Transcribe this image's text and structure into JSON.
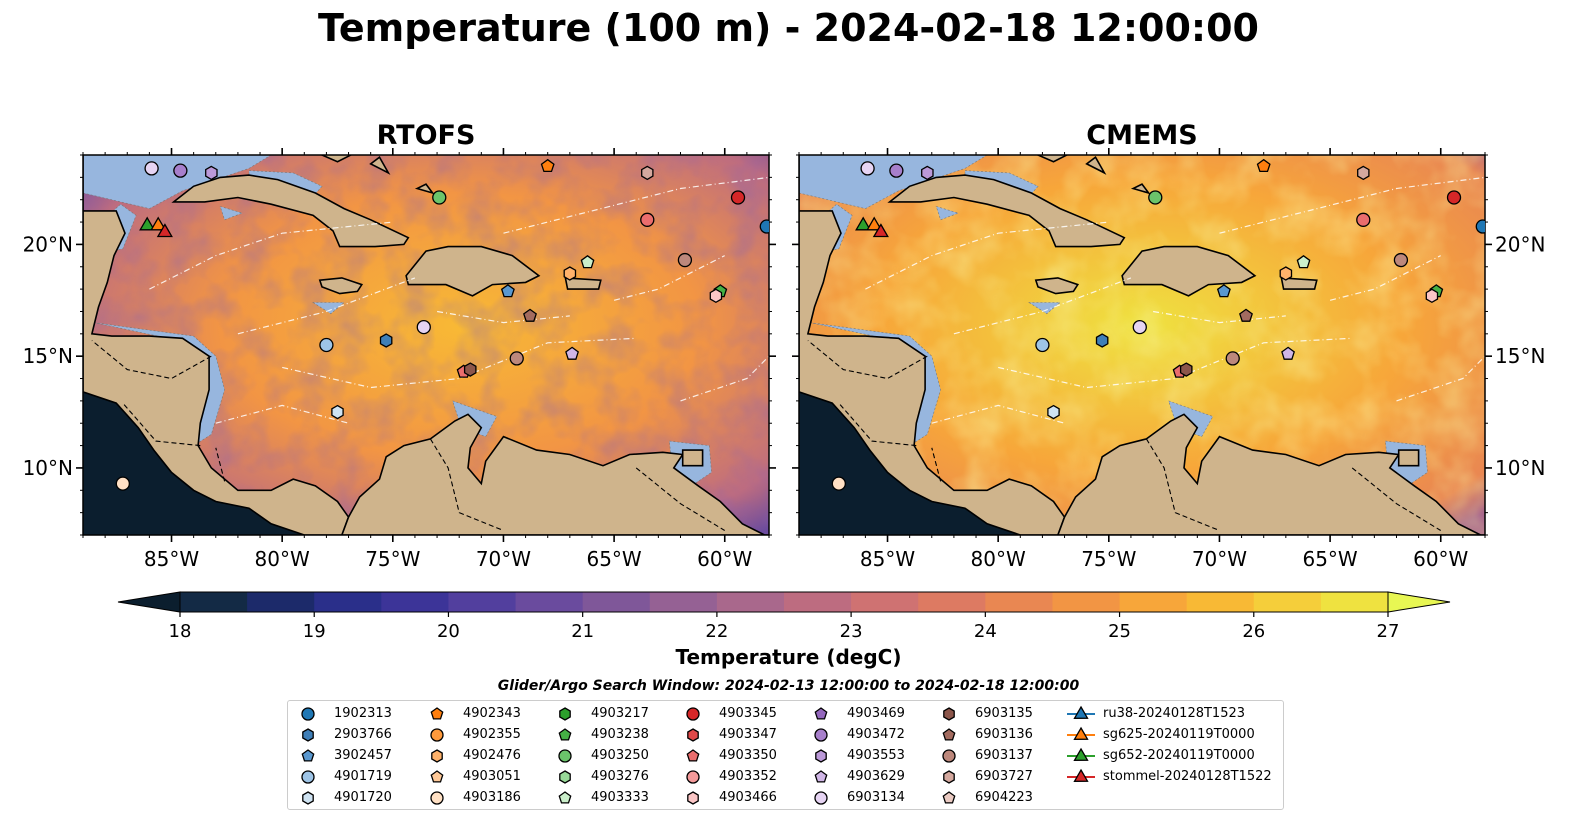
{
  "title": "Temperature (100 m) - 2024-02-18 12:00:00",
  "panels": [
    {
      "title": "RTOFS",
      "model": "rtofs"
    },
    {
      "title": "CMEMS",
      "model": "cmems"
    }
  ],
  "axes": {
    "lon_ticks": [
      "85°W",
      "80°W",
      "75°W",
      "70°W",
      "65°W",
      "60°W"
    ],
    "lon_tick_values": [
      -85,
      -80,
      -75,
      -70,
      -65,
      -60
    ],
    "lat_ticks": [
      "20°N",
      "15°N",
      "10°N"
    ],
    "lat_tick_values": [
      20,
      15,
      10
    ],
    "lon_range": [
      -89,
      -58
    ],
    "lat_range": [
      7,
      24
    ]
  },
  "colorbar": {
    "label": "Temperature (degC)",
    "ticks": [
      "18",
      "19",
      "20",
      "21",
      "22",
      "23",
      "24",
      "25",
      "26",
      "27"
    ],
    "range": [
      18,
      27
    ],
    "extend": "both",
    "colors": [
      "#0b1e2e",
      "#132a45",
      "#1c2a6a",
      "#2a2f8a",
      "#3c3498",
      "#523f9e",
      "#6a4b9e",
      "#7f5799",
      "#956194",
      "#a9688c",
      "#bd6c80",
      "#cf7272",
      "#dd7a62",
      "#e98752",
      "#f29544",
      "#f7a63a",
      "#f8b935",
      "#f5ce3a",
      "#efe240",
      "#e8f753"
    ]
  },
  "chart_data": [
    {
      "type": "heatmap",
      "title": "RTOFS",
      "variable": "Temperature (100 m)",
      "units": "degC",
      "lon_range": [
        -89,
        -58
      ],
      "lat_range": [
        7,
        24
      ],
      "typical_values": {
        "Caribbean interior": 24.5,
        "Venezuela coast": 22,
        "Pacific west": 18
      }
    },
    {
      "type": "heatmap",
      "title": "CMEMS",
      "variable": "Temperature (100 m)",
      "units": "degC",
      "lon_range": [
        -89,
        -58
      ],
      "lat_range": [
        7,
        24
      ],
      "typical_values": {
        "Caribbean interior": 26,
        "Venezuela coast": 24,
        "Pacific west": 18
      }
    }
  ],
  "legend": {
    "title": "Glider/Argo Search Window: 2024-02-13 12:00:00 to 2024-02-18 12:00:00",
    "columns": [
      [
        {
          "label": "1902313",
          "marker": "circle",
          "color": "#1f77b4"
        },
        {
          "label": "2903766",
          "marker": "hexagon",
          "color": "#3f7fb8"
        },
        {
          "label": "3902457",
          "marker": "pentagon",
          "color": "#5a98cf"
        },
        {
          "label": "4901719",
          "marker": "circle",
          "color": "#9ec4e6"
        },
        {
          "label": "4901720",
          "marker": "hexagon",
          "color": "#cfe3f2"
        }
      ],
      [
        {
          "label": "4902343",
          "marker": "pentagon",
          "color": "#ff7f0e"
        },
        {
          "label": "4902355",
          "marker": "circle",
          "color": "#ff9a3c"
        },
        {
          "label": "4902476",
          "marker": "hexagon",
          "color": "#ffb26b"
        },
        {
          "label": "4903051",
          "marker": "pentagon",
          "color": "#ffc998"
        },
        {
          "label": "4903186",
          "marker": "circle",
          "color": "#ffe0c4"
        }
      ],
      [
        {
          "label": "4903217",
          "marker": "hexagon",
          "color": "#2ca02c"
        },
        {
          "label": "4903238",
          "marker": "pentagon",
          "color": "#45b045"
        },
        {
          "label": "4903250",
          "marker": "circle",
          "color": "#6bc46b"
        },
        {
          "label": "4903276",
          "marker": "hexagon",
          "color": "#98d998"
        },
        {
          "label": "4903333",
          "marker": "pentagon",
          "color": "#cbefcb"
        }
      ],
      [
        {
          "label": "4903345",
          "marker": "circle",
          "color": "#d62728"
        },
        {
          "label": "4903347",
          "marker": "hexagon",
          "color": "#e04848"
        },
        {
          "label": "4903350",
          "marker": "pentagon",
          "color": "#ea6d6d"
        },
        {
          "label": "4903352",
          "marker": "circle",
          "color": "#f49a9a"
        },
        {
          "label": "4903466",
          "marker": "hexagon",
          "color": "#fbc6c6"
        }
      ],
      [
        {
          "label": "4903469",
          "marker": "pentagon",
          "color": "#9467bd"
        },
        {
          "label": "4903472",
          "marker": "circle",
          "color": "#a77fcb"
        },
        {
          "label": "4903553",
          "marker": "hexagon",
          "color": "#bb99d8"
        },
        {
          "label": "4903629",
          "marker": "pentagon",
          "color": "#d0b6e6"
        },
        {
          "label": "6903134",
          "marker": "circle",
          "color": "#e6d4f3"
        }
      ],
      [
        {
          "label": "6903135",
          "marker": "hexagon",
          "color": "#8c564b"
        },
        {
          "label": "6903136",
          "marker": "pentagon",
          "color": "#a36b5f"
        },
        {
          "label": "6903137",
          "marker": "circle",
          "color": "#bd887c"
        },
        {
          "label": "6903727",
          "marker": "hexagon",
          "color": "#d4a89e"
        },
        {
          "label": "6904223",
          "marker": "pentagon",
          "color": "#ebcbc3"
        }
      ],
      [
        {
          "label": "ru38-20240128T1523",
          "marker": "triangle-line",
          "color": "#1f77b4"
        },
        {
          "label": "sg625-20240119T0000",
          "marker": "triangle-line",
          "color": "#ff7f0e"
        },
        {
          "label": "sg652-20240119T0000",
          "marker": "triangle-line",
          "color": "#2ca02c"
        },
        {
          "label": "stommel-20240128T1522",
          "marker": "triangle-line",
          "color": "#d62728"
        }
      ]
    ]
  },
  "floats": [
    {
      "lon": -85.9,
      "lat": 23.4,
      "marker": "circle",
      "color": "#e6d4f3"
    },
    {
      "lon": -84.6,
      "lat": 23.3,
      "marker": "circle",
      "color": "#a77fcb"
    },
    {
      "lon": -83.2,
      "lat": 23.2,
      "marker": "hexagon",
      "color": "#bb99d8"
    },
    {
      "lon": -72.9,
      "lat": 22.1,
      "marker": "circle",
      "color": "#6bc46b"
    },
    {
      "lon": -68.0,
      "lat": 23.5,
      "marker": "pentagon",
      "color": "#ff7f0e"
    },
    {
      "lon": -63.5,
      "lat": 23.2,
      "marker": "hexagon",
      "color": "#d4a89e"
    },
    {
      "lon": -59.4,
      "lat": 22.1,
      "marker": "circle",
      "color": "#d62728"
    },
    {
      "lon": -63.5,
      "lat": 21.1,
      "marker": "circle",
      "color": "#ea6d6d"
    },
    {
      "lon": -58.1,
      "lat": 20.8,
      "marker": "circle",
      "color": "#1f77b4"
    },
    {
      "lon": -61.8,
      "lat": 19.3,
      "marker": "circle",
      "color": "#bd887c"
    },
    {
      "lon": -66.2,
      "lat": 19.2,
      "marker": "pentagon",
      "color": "#cbefcb"
    },
    {
      "lon": -67.0,
      "lat": 18.7,
      "marker": "hexagon",
      "color": "#ffb26b"
    },
    {
      "lon": -60.2,
      "lat": 17.9,
      "marker": "pentagon",
      "color": "#45b045"
    },
    {
      "lon": -60.4,
      "lat": 17.7,
      "marker": "hexagon",
      "color": "#fbc6c6"
    },
    {
      "lon": -69.8,
      "lat": 17.9,
      "marker": "pentagon",
      "color": "#5a98cf"
    },
    {
      "lon": -68.8,
      "lat": 16.8,
      "marker": "pentagon",
      "color": "#a36b5f"
    },
    {
      "lon": -73.6,
      "lat": 16.3,
      "marker": "circle",
      "color": "#e6d4f3"
    },
    {
      "lon": -75.3,
      "lat": 15.7,
      "marker": "hexagon",
      "color": "#3f7fb8"
    },
    {
      "lon": -78.0,
      "lat": 15.5,
      "marker": "circle",
      "color": "#9ec4e6"
    },
    {
      "lon": -66.9,
      "lat": 15.1,
      "marker": "pentagon",
      "color": "#d0b6e6"
    },
    {
      "lon": -69.4,
      "lat": 14.9,
      "marker": "circle",
      "color": "#bd887c"
    },
    {
      "lon": -71.8,
      "lat": 14.3,
      "marker": "pentagon",
      "color": "#ea6d6d"
    },
    {
      "lon": -71.5,
      "lat": 14.4,
      "marker": "hexagon",
      "color": "#8c564b"
    },
    {
      "lon": -77.5,
      "lat": 12.5,
      "marker": "hexagon",
      "color": "#cfe3f2"
    },
    {
      "lon": -87.2,
      "lat": 9.3,
      "marker": "circle",
      "color": "#ffe0c4"
    }
  ],
  "gliders": [
    {
      "lon": -86.1,
      "lat": 20.9,
      "color": "#2ca02c"
    },
    {
      "lon": -85.6,
      "lat": 20.9,
      "color": "#ff7f0e"
    },
    {
      "lon": -85.3,
      "lat": 20.6,
      "color": "#d62728"
    }
  ]
}
